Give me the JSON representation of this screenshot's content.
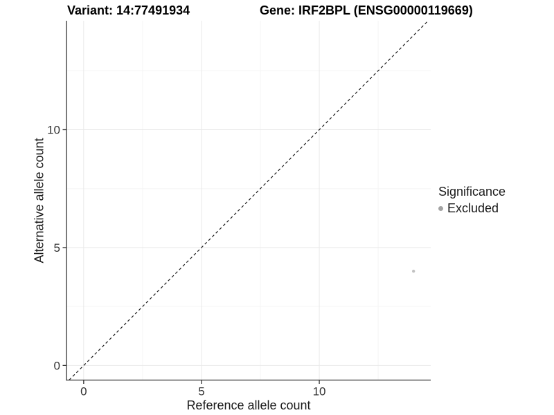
{
  "chart_data": {
    "type": "scatter",
    "title_left": "Variant: 14:77491934",
    "title_right": "Gene: IRF2BPL (ENSG00000119669)",
    "xlabel": "Reference allele count",
    "ylabel": "Alternative allele count",
    "xlim": [
      -0.73,
      14.73
    ],
    "ylim": [
      -0.62,
      14.62
    ],
    "x_ticks": [
      0,
      5,
      10
    ],
    "y_ticks": [
      0,
      5,
      10
    ],
    "x_minor_ticks": [
      2.5,
      7.5,
      12.5
    ],
    "y_minor_ticks": [
      2.5,
      7.5,
      12.5
    ],
    "grid": "on",
    "series": [
      {
        "name": "Excluded",
        "color": "#c2c2c2",
        "point_radius": 2.2,
        "points": [
          {
            "x": 14,
            "y": 4
          }
        ]
      }
    ],
    "reference_line": {
      "type": "identity",
      "equation": "y = x",
      "style": "dashed",
      "color": "#1a1a1a"
    },
    "legend": {
      "title": "Significance",
      "position": "right",
      "entries": [
        {
          "label": "Excluded",
          "color": "#a3a3a3"
        }
      ]
    },
    "colors": {
      "axis": "#333333",
      "grid_major": "#e9e9e9",
      "grid_minor": "#f5f5f5",
      "tick_label": "#333333",
      "title": "#000000"
    }
  }
}
